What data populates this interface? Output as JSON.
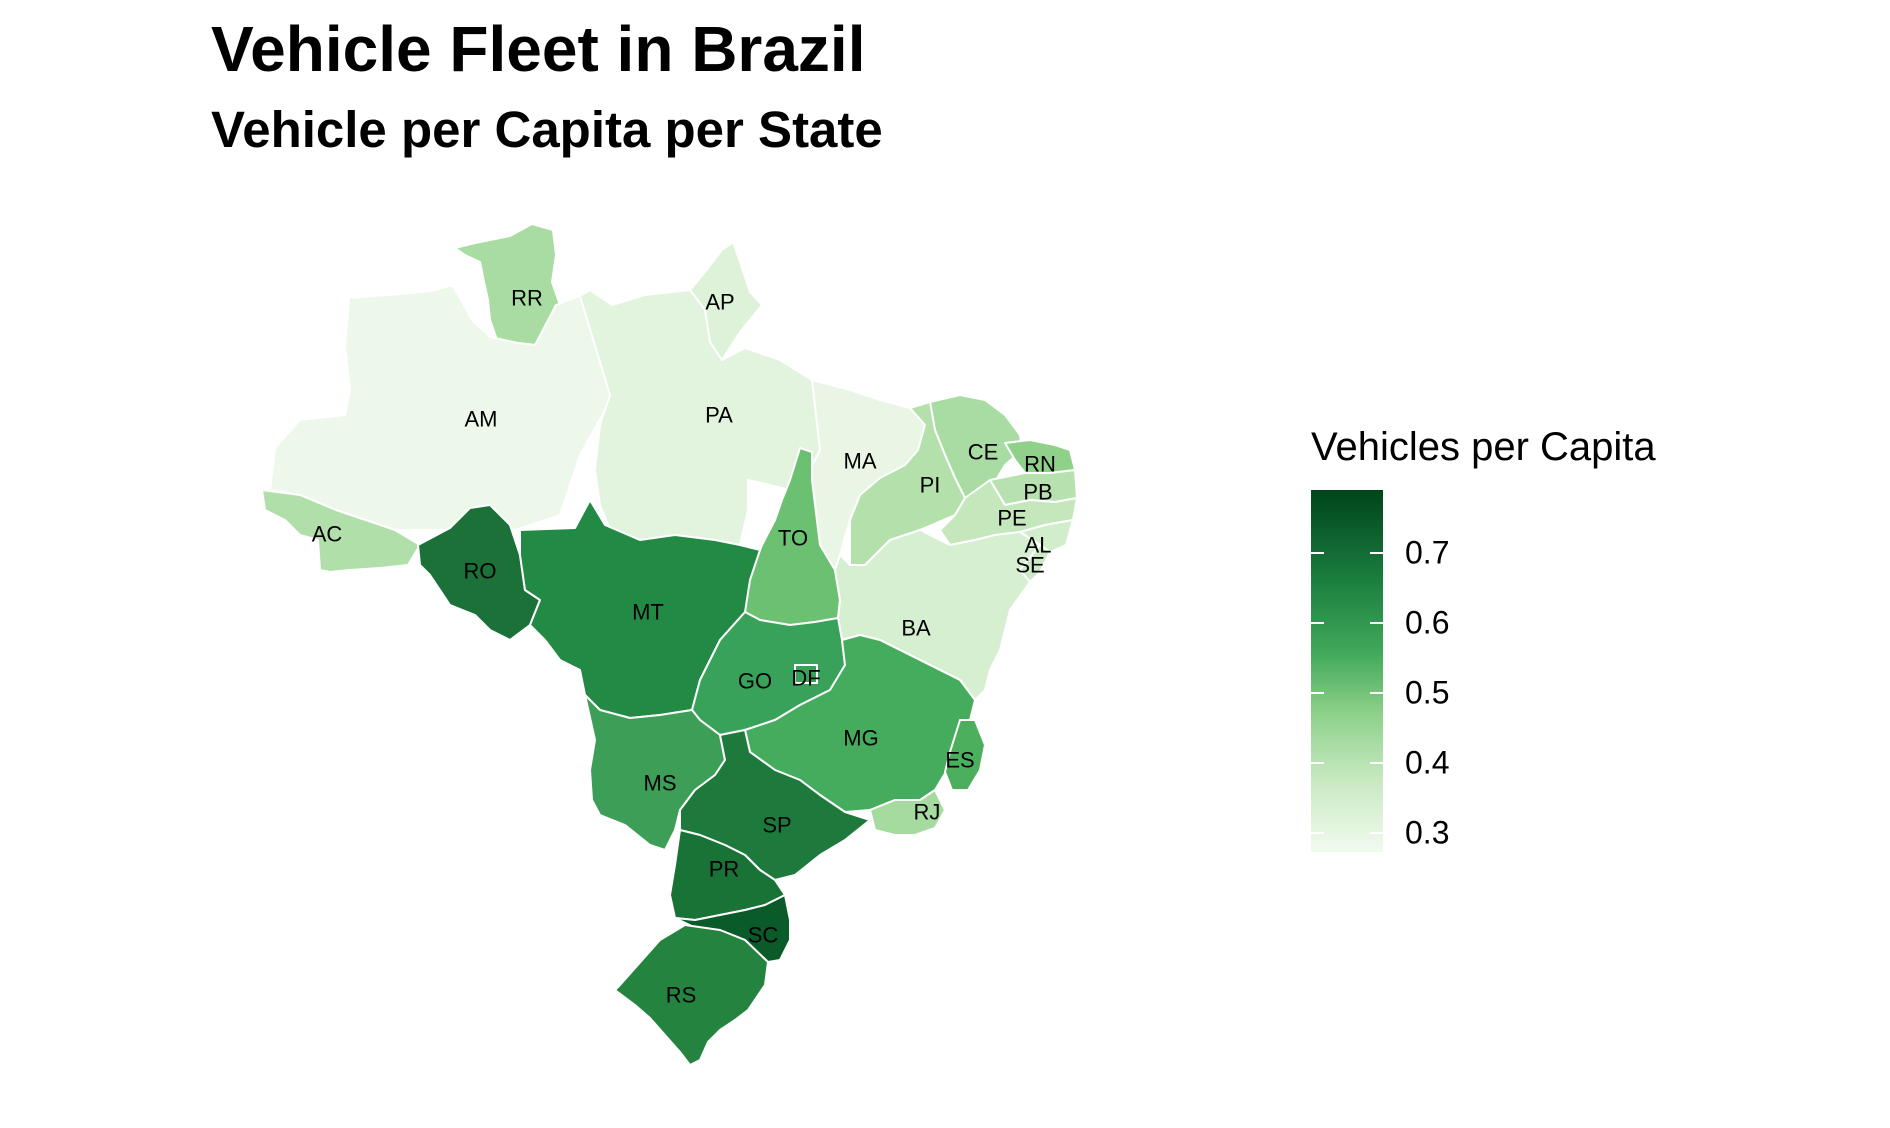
{
  "title": "Vehicle Fleet in Brazil",
  "subtitle": "Vehicle per Capita per State",
  "legend": {
    "title": "Vehicles per Capita",
    "ticks": [
      "0.7",
      "0.6",
      "0.5",
      "0.4",
      "0.3"
    ],
    "low_color": "#f7fcf5",
    "high_color": "#00441b"
  },
  "states": [
    {
      "abbr": "RR",
      "color": "#a8dca2"
    },
    {
      "abbr": "AP",
      "color": "#ddf2d8"
    },
    {
      "abbr": "AM",
      "color": "#eef8ea"
    },
    {
      "abbr": "PA",
      "color": "#e2f4dd"
    },
    {
      "abbr": "MA",
      "color": "#e9f6e5"
    },
    {
      "abbr": "CE",
      "color": "#a9dca2"
    },
    {
      "abbr": "RN",
      "color": "#8fd18b"
    },
    {
      "abbr": "PI",
      "color": "#b3e0ab"
    },
    {
      "abbr": "PB",
      "color": "#b7e2b0"
    },
    {
      "abbr": "PE",
      "color": "#c4e7bc"
    },
    {
      "abbr": "AL",
      "color": "#d2edcb"
    },
    {
      "abbr": "SE",
      "color": "#cbe9c4"
    },
    {
      "abbr": "AC",
      "color": "#b1dfaa"
    },
    {
      "abbr": "TO",
      "color": "#6bc072"
    },
    {
      "abbr": "RO",
      "color": "#1b7138"
    },
    {
      "abbr": "MT",
      "color": "#228a44"
    },
    {
      "abbr": "BA",
      "color": "#d6efd0"
    },
    {
      "abbr": "GO",
      "color": "#39a25a"
    },
    {
      "abbr": "DF",
      "color": "#39a25a"
    },
    {
      "abbr": "MG",
      "color": "#45ab5d"
    },
    {
      "abbr": "ES",
      "color": "#4caf5e"
    },
    {
      "abbr": "MS",
      "color": "#3d9f57"
    },
    {
      "abbr": "SP",
      "color": "#1e7a3c"
    },
    {
      "abbr": "RJ",
      "color": "#a6dba0"
    },
    {
      "abbr": "PR",
      "color": "#197336"
    },
    {
      "abbr": "SC",
      "color": "#0a5a2a"
    },
    {
      "abbr": "RS",
      "color": "#24843f"
    }
  ]
}
